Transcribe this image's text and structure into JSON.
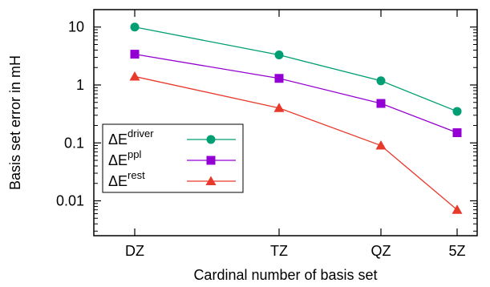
{
  "chart_data": {
    "type": "line",
    "x_categories": [
      "DZ",
      "TZ",
      "QZ",
      "5Z"
    ],
    "x_values": [
      2,
      3,
      4,
      5
    ],
    "xlabel": "Cardinal number of basis set",
    "ylabel": "Basis set error in mH",
    "yscale": "log",
    "ylim": [
      0.0025,
      20
    ],
    "y_tick_labels": [
      "10",
      "1",
      "0.1",
      "0.01"
    ],
    "y_tick_values": [
      10,
      1,
      0.1,
      0.01
    ],
    "grid": false,
    "legend_position": "left-middle",
    "series": [
      {
        "name": "ΔE",
        "name_sup": "driver",
        "color": "#009e73",
        "marker": "circle",
        "values": [
          10.0,
          3.3,
          1.18,
          0.35
        ]
      },
      {
        "name": "ΔE",
        "name_sup": "ppl",
        "color": "#9400d3",
        "marker": "square",
        "values": [
          3.4,
          1.3,
          0.48,
          0.15
        ]
      },
      {
        "name": "ΔE",
        "name_sup": "rest",
        "color": "#e8392b",
        "marker": "triangle",
        "values": [
          1.4,
          0.4,
          0.09,
          0.007
        ]
      }
    ]
  }
}
